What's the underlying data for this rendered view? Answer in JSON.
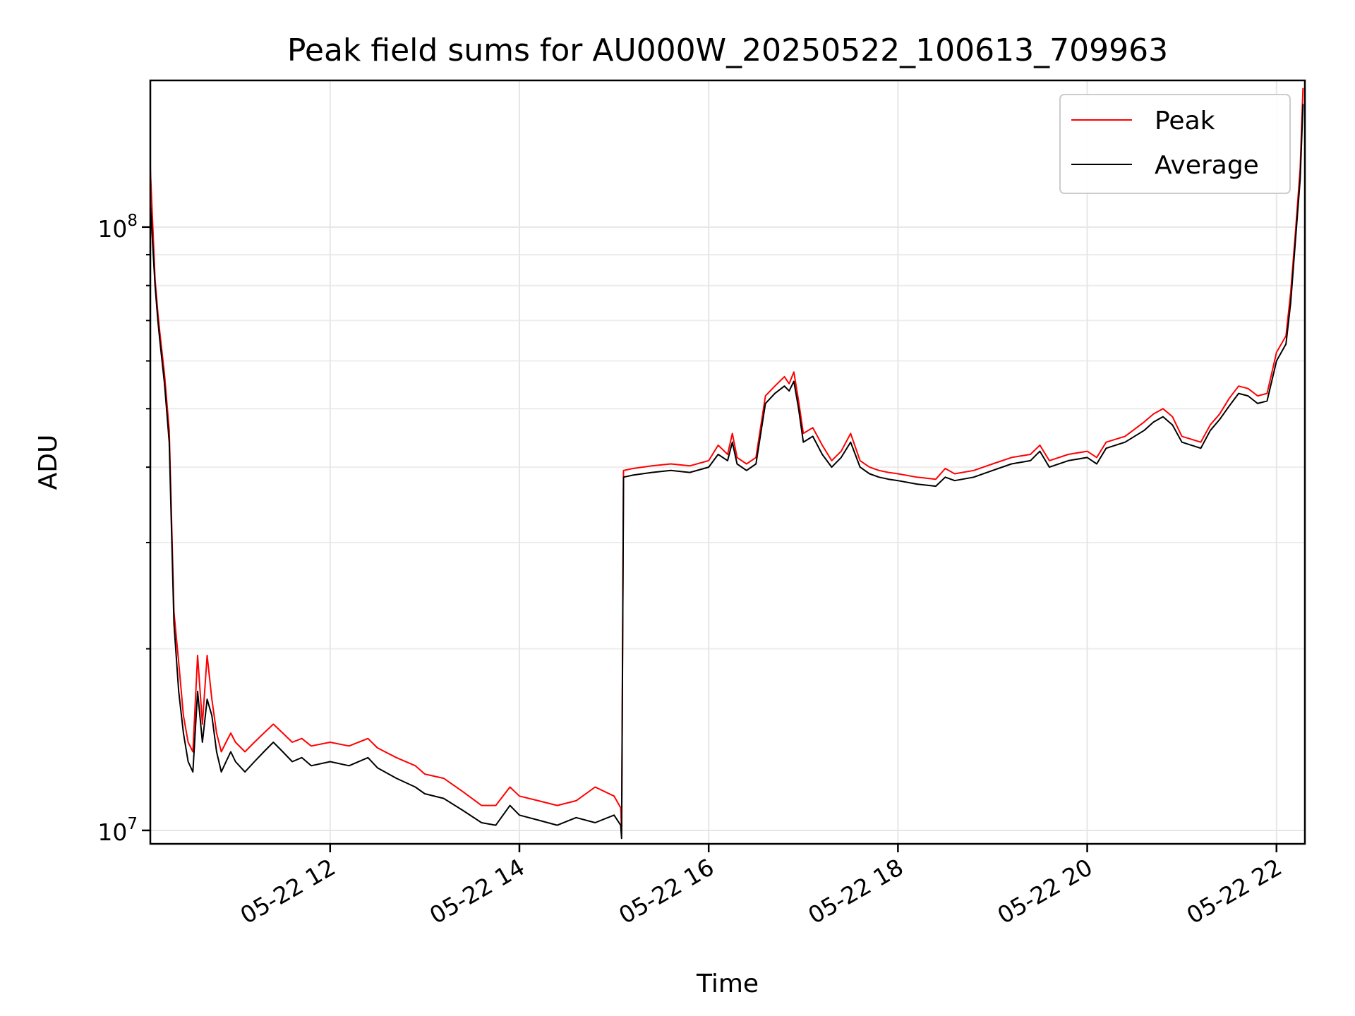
{
  "chart_data": {
    "type": "line",
    "title": "Peak field sums for AU000W_20250522_100613_709963",
    "xlabel": "Time",
    "ylabel": "ADU",
    "x_unit": "hour of 2025-05-22",
    "xlim": [
      10.1,
      22.3
    ],
    "ylim": [
      9500000,
      175000000
    ],
    "yscale": "log",
    "grid": true,
    "legend": {
      "position": "upper right",
      "entries": [
        "Peak",
        "Average"
      ]
    },
    "x_ticks": [
      {
        "value": 12,
        "label": "05-22 12"
      },
      {
        "value": 14,
        "label": "05-22 14"
      },
      {
        "value": 16,
        "label": "05-22 16"
      },
      {
        "value": 18,
        "label": "05-22 18"
      },
      {
        "value": 20,
        "label": "05-22 20"
      },
      {
        "value": 22,
        "label": "05-22 22"
      }
    ],
    "y_ticks": [
      {
        "value": 10000000,
        "base": "10",
        "exp": "7"
      },
      {
        "value": 100000000,
        "base": "10",
        "exp": "8"
      }
    ],
    "colors": {
      "Peak": "#ff0000",
      "Average": "#000000"
    },
    "series": [
      {
        "name": "Average",
        "x": [
          10.1,
          10.15,
          10.18,
          10.2,
          10.25,
          10.3,
          10.35,
          10.4,
          10.45,
          10.5,
          10.55,
          10.6,
          10.65,
          10.7,
          10.75,
          10.8,
          10.85,
          10.9,
          10.95,
          11.0,
          11.1,
          11.2,
          11.3,
          11.4,
          11.5,
          11.6,
          11.7,
          11.8,
          12.0,
          12.2,
          12.4,
          12.5,
          12.7,
          12.9,
          13.0,
          13.2,
          13.4,
          13.6,
          13.75,
          13.9,
          14.0,
          14.2,
          14.4,
          14.6,
          14.8,
          15.0,
          15.07,
          15.08,
          15.1,
          15.2,
          15.4,
          15.6,
          15.8,
          16.0,
          16.1,
          16.2,
          16.25,
          16.3,
          16.4,
          16.5,
          16.6,
          16.7,
          16.8,
          16.85,
          16.9,
          16.95,
          17.0,
          17.1,
          17.2,
          17.3,
          17.4,
          17.5,
          17.6,
          17.7,
          17.8,
          17.9,
          18.0,
          18.2,
          18.4,
          18.5,
          18.6,
          18.8,
          19.0,
          19.2,
          19.4,
          19.5,
          19.6,
          19.8,
          20.0,
          20.1,
          20.2,
          20.4,
          20.6,
          20.7,
          20.8,
          20.9,
          21.0,
          21.2,
          21.3,
          21.4,
          21.5,
          21.6,
          21.7,
          21.8,
          21.9,
          22.0,
          22.1,
          22.15,
          22.2,
          22.25,
          22.28
        ],
        "y": [
          110000000,
          80000000,
          70000000,
          65000000,
          55000000,
          44000000,
          22000000,
          17000000,
          14500000,
          13000000,
          12500000,
          17000000,
          14000000,
          16500000,
          15500000,
          13500000,
          12500000,
          13000000,
          13500000,
          13000000,
          12500000,
          13000000,
          13500000,
          14000000,
          13500000,
          13000000,
          13200000,
          12800000,
          13000000,
          12800000,
          13200000,
          12700000,
          12200000,
          11800000,
          11500000,
          11300000,
          10800000,
          10300000,
          10200000,
          11000000,
          10600000,
          10400000,
          10200000,
          10500000,
          10300000,
          10600000,
          10200000,
          9700000,
          38500000,
          38800000,
          39200000,
          39500000,
          39200000,
          40000000,
          42000000,
          41000000,
          44000000,
          40500000,
          39500000,
          40500000,
          51000000,
          53000000,
          54500000,
          53500000,
          55500000,
          50000000,
          44000000,
          45000000,
          42000000,
          40000000,
          41500000,
          44000000,
          40000000,
          39000000,
          38500000,
          38200000,
          38000000,
          37500000,
          37200000,
          38500000,
          38000000,
          38500000,
          39500000,
          40500000,
          41000000,
          42500000,
          40000000,
          41000000,
          41500000,
          40500000,
          43000000,
          44000000,
          46000000,
          47500000,
          48500000,
          47000000,
          44000000,
          43000000,
          46000000,
          48000000,
          50500000,
          53000000,
          52500000,
          51000000,
          51500000,
          60000000,
          64000000,
          75000000,
          95000000,
          120000000,
          160000000
        ]
      },
      {
        "name": "Peak",
        "x": [
          10.1,
          10.15,
          10.18,
          10.2,
          10.25,
          10.3,
          10.35,
          10.4,
          10.45,
          10.5,
          10.55,
          10.6,
          10.65,
          10.7,
          10.75,
          10.8,
          10.85,
          10.9,
          10.95,
          11.0,
          11.1,
          11.2,
          11.3,
          11.4,
          11.5,
          11.6,
          11.7,
          11.8,
          12.0,
          12.2,
          12.4,
          12.5,
          12.7,
          12.9,
          13.0,
          13.2,
          13.4,
          13.6,
          13.75,
          13.9,
          14.0,
          14.2,
          14.4,
          14.6,
          14.8,
          15.0,
          15.07,
          15.08,
          15.1,
          15.2,
          15.4,
          15.6,
          15.8,
          16.0,
          16.1,
          16.2,
          16.25,
          16.3,
          16.4,
          16.5,
          16.6,
          16.7,
          16.8,
          16.85,
          16.9,
          16.95,
          17.0,
          17.1,
          17.2,
          17.3,
          17.4,
          17.5,
          17.6,
          17.7,
          17.8,
          17.9,
          18.0,
          18.2,
          18.4,
          18.5,
          18.6,
          18.8,
          19.0,
          19.2,
          19.4,
          19.5,
          19.6,
          19.8,
          20.0,
          20.1,
          20.2,
          20.4,
          20.6,
          20.7,
          20.8,
          20.9,
          21.0,
          21.2,
          21.3,
          21.4,
          21.5,
          21.6,
          21.7,
          21.8,
          21.9,
          22.0,
          22.1,
          22.15,
          22.2,
          22.25,
          22.28
        ],
        "y": [
          125000000,
          82000000,
          72000000,
          67000000,
          57000000,
          46000000,
          23000000,
          19000000,
          15500000,
          14000000,
          13500000,
          19500000,
          15000000,
          19500000,
          16500000,
          14500000,
          13500000,
          14000000,
          14500000,
          14000000,
          13500000,
          14000000,
          14500000,
          15000000,
          14500000,
          14000000,
          14200000,
          13800000,
          14000000,
          13800000,
          14200000,
          13700000,
          13200000,
          12800000,
          12400000,
          12200000,
          11600000,
          11000000,
          11000000,
          11800000,
          11400000,
          11200000,
          11000000,
          11200000,
          11800000,
          11400000,
          10900000,
          10000000,
          39500000,
          39800000,
          40200000,
          40500000,
          40200000,
          41000000,
          43500000,
          42000000,
          45500000,
          41500000,
          40500000,
          41500000,
          52500000,
          54500000,
          56500000,
          55000000,
          57500000,
          51500000,
          45500000,
          46500000,
          43500000,
          41000000,
          42500000,
          45500000,
          41000000,
          40000000,
          39500000,
          39200000,
          39000000,
          38500000,
          38200000,
          39800000,
          39000000,
          39500000,
          40500000,
          41500000,
          42000000,
          43500000,
          41000000,
          42000000,
          42500000,
          41500000,
          44000000,
          45000000,
          47500000,
          49000000,
          50000000,
          48500000,
          45000000,
          44000000,
          47000000,
          49000000,
          52000000,
          54500000,
          54000000,
          52500000,
          53000000,
          62000000,
          66000000,
          78000000,
          98000000,
          125000000,
          170000000
        ]
      }
    ]
  }
}
